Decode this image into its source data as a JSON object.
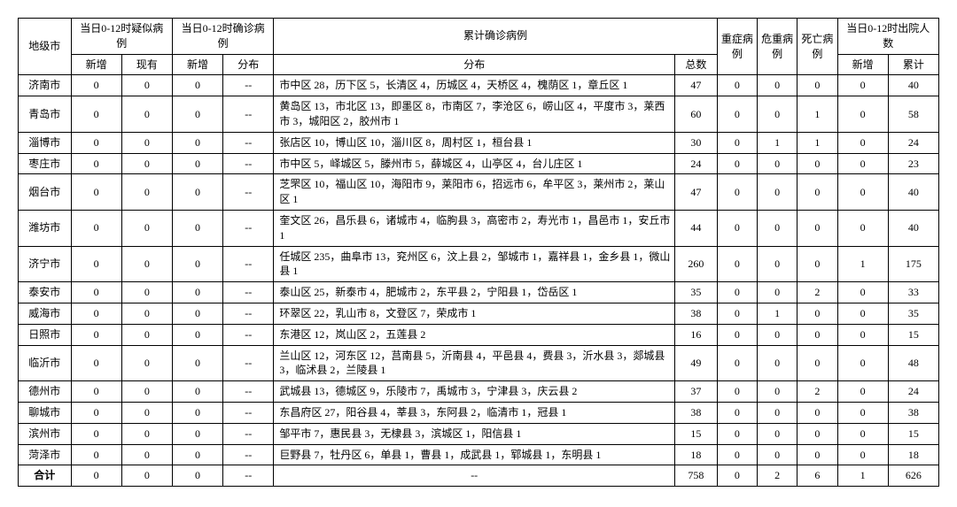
{
  "headers": {
    "city": "地级市",
    "suspected_group": "当日0-12时疑似病例",
    "confirmed_group": "当日0-12时确诊病例",
    "cumulative_group": "累计确诊病例",
    "severe": "重症病例",
    "critical": "危重病例",
    "death": "死亡病例",
    "discharge_group": "当日0-12时出院人数",
    "new": "新增",
    "existing": "现有",
    "distribution": "分布",
    "total": "总数",
    "cumulative": "累计"
  },
  "rows": [
    {
      "city": "济南市",
      "s_new": "0",
      "s_exist": "0",
      "c_new": "0",
      "c_dist": "--",
      "cum_dist": "市中区 28，历下区 5，长清区 4，历城区 4，天桥区 4，槐荫区 1，章丘区 1",
      "cum_total": "47",
      "severe": "0",
      "critical": "0",
      "death": "0",
      "d_new": "0",
      "d_cum": "40"
    },
    {
      "city": "青岛市",
      "s_new": "0",
      "s_exist": "0",
      "c_new": "0",
      "c_dist": "--",
      "cum_dist": "黄岛区 13，市北区 13，即墨区 8，市南区 7，李沧区 6，崂山区 4，平度市 3，莱西市 3，城阳区 2，胶州市 1",
      "cum_total": "60",
      "severe": "0",
      "critical": "0",
      "death": "1",
      "d_new": "0",
      "d_cum": "58"
    },
    {
      "city": "淄博市",
      "s_new": "0",
      "s_exist": "0",
      "c_new": "0",
      "c_dist": "--",
      "cum_dist": "张店区 10，博山区 10，淄川区 8，周村区 1，桓台县 1",
      "cum_total": "30",
      "severe": "0",
      "critical": "1",
      "death": "1",
      "d_new": "0",
      "d_cum": "24"
    },
    {
      "city": "枣庄市",
      "s_new": "0",
      "s_exist": "0",
      "c_new": "0",
      "c_dist": "--",
      "cum_dist": "市中区 5，峄城区 5，滕州市 5，薛城区 4，山亭区 4，台儿庄区 1",
      "cum_total": "24",
      "severe": "0",
      "critical": "0",
      "death": "0",
      "d_new": "0",
      "d_cum": "23"
    },
    {
      "city": "烟台市",
      "s_new": "0",
      "s_exist": "0",
      "c_new": "0",
      "c_dist": "--",
      "cum_dist": "芝罘区 10，福山区 10，海阳市 9，莱阳市 6，招远市 6，牟平区 3，莱州市 2，莱山区 1",
      "cum_total": "47",
      "severe": "0",
      "critical": "0",
      "death": "0",
      "d_new": "0",
      "d_cum": "40"
    },
    {
      "city": "潍坊市",
      "s_new": "0",
      "s_exist": "0",
      "c_new": "0",
      "c_dist": "--",
      "cum_dist": "奎文区 26，昌乐县 6，诸城市 4，临朐县 3，高密市 2，寿光市 1，昌邑市 1，安丘市 1",
      "cum_total": "44",
      "severe": "0",
      "critical": "0",
      "death": "0",
      "d_new": "0",
      "d_cum": "40"
    },
    {
      "city": "济宁市",
      "s_new": "0",
      "s_exist": "0",
      "c_new": "0",
      "c_dist": "--",
      "cum_dist": "任城区 235，曲阜市 13，兖州区 6，汶上县 2，邹城市 1，嘉祥县 1，金乡县 1，微山县 1",
      "cum_total": "260",
      "severe": "0",
      "critical": "0",
      "death": "0",
      "d_new": "1",
      "d_cum": "175"
    },
    {
      "city": "泰安市",
      "s_new": "0",
      "s_exist": "0",
      "c_new": "0",
      "c_dist": "--",
      "cum_dist": "泰山区 25，新泰市 4，肥城市 2，东平县 2，宁阳县 1，岱岳区 1",
      "cum_total": "35",
      "severe": "0",
      "critical": "0",
      "death": "2",
      "d_new": "0",
      "d_cum": "33"
    },
    {
      "city": "威海市",
      "s_new": "0",
      "s_exist": "0",
      "c_new": "0",
      "c_dist": "--",
      "cum_dist": "环翠区 22，乳山市 8，文登区 7，荣成市 1",
      "cum_total": "38",
      "severe": "0",
      "critical": "1",
      "death": "0",
      "d_new": "0",
      "d_cum": "35"
    },
    {
      "city": "日照市",
      "s_new": "0",
      "s_exist": "0",
      "c_new": "0",
      "c_dist": "--",
      "cum_dist": "东港区 12，岚山区 2，五莲县 2",
      "cum_total": "16",
      "severe": "0",
      "critical": "0",
      "death": "0",
      "d_new": "0",
      "d_cum": "15"
    },
    {
      "city": "临沂市",
      "s_new": "0",
      "s_exist": "0",
      "c_new": "0",
      "c_dist": "--",
      "cum_dist": "兰山区 12，河东区 12，莒南县 5，沂南县 4，平邑县 4，费县 3，沂水县 3，郯城县 3，临沭县 2，兰陵县 1",
      "cum_total": "49",
      "severe": "0",
      "critical": "0",
      "death": "0",
      "d_new": "0",
      "d_cum": "48"
    },
    {
      "city": "德州市",
      "s_new": "0",
      "s_exist": "0",
      "c_new": "0",
      "c_dist": "--",
      "cum_dist": "武城县 13，德城区 9，乐陵市 7，禹城市 3，宁津县 3，庆云县 2",
      "cum_total": "37",
      "severe": "0",
      "critical": "0",
      "death": "2",
      "d_new": "0",
      "d_cum": "24"
    },
    {
      "city": "聊城市",
      "s_new": "0",
      "s_exist": "0",
      "c_new": "0",
      "c_dist": "--",
      "cum_dist": "东昌府区 27，阳谷县 4，莘县 3，东阿县 2，临清市 1，冠县 1",
      "cum_total": "38",
      "severe": "0",
      "critical": "0",
      "death": "0",
      "d_new": "0",
      "d_cum": "38"
    },
    {
      "city": "滨州市",
      "s_new": "0",
      "s_exist": "0",
      "c_new": "0",
      "c_dist": "--",
      "cum_dist": "邹平市 7，惠民县 3，无棣县 3，滨城区 1，阳信县 1",
      "cum_total": "15",
      "severe": "0",
      "critical": "0",
      "death": "0",
      "d_new": "0",
      "d_cum": "15"
    },
    {
      "city": "菏泽市",
      "s_new": "0",
      "s_exist": "0",
      "c_new": "0",
      "c_dist": "--",
      "cum_dist": "巨野县 7，牡丹区 6，单县 1，曹县 1，成武县 1，郓城县 1，东明县 1",
      "cum_total": "18",
      "severe": "0",
      "critical": "0",
      "death": "0",
      "d_new": "0",
      "d_cum": "18"
    }
  ],
  "totals": {
    "label": "合计",
    "s_new": "0",
    "s_exist": "0",
    "c_new": "0",
    "c_dist": "--",
    "cum_dist": "--",
    "cum_total": "758",
    "severe": "0",
    "critical": "2",
    "death": "6",
    "d_new": "1",
    "d_cum": "626"
  }
}
